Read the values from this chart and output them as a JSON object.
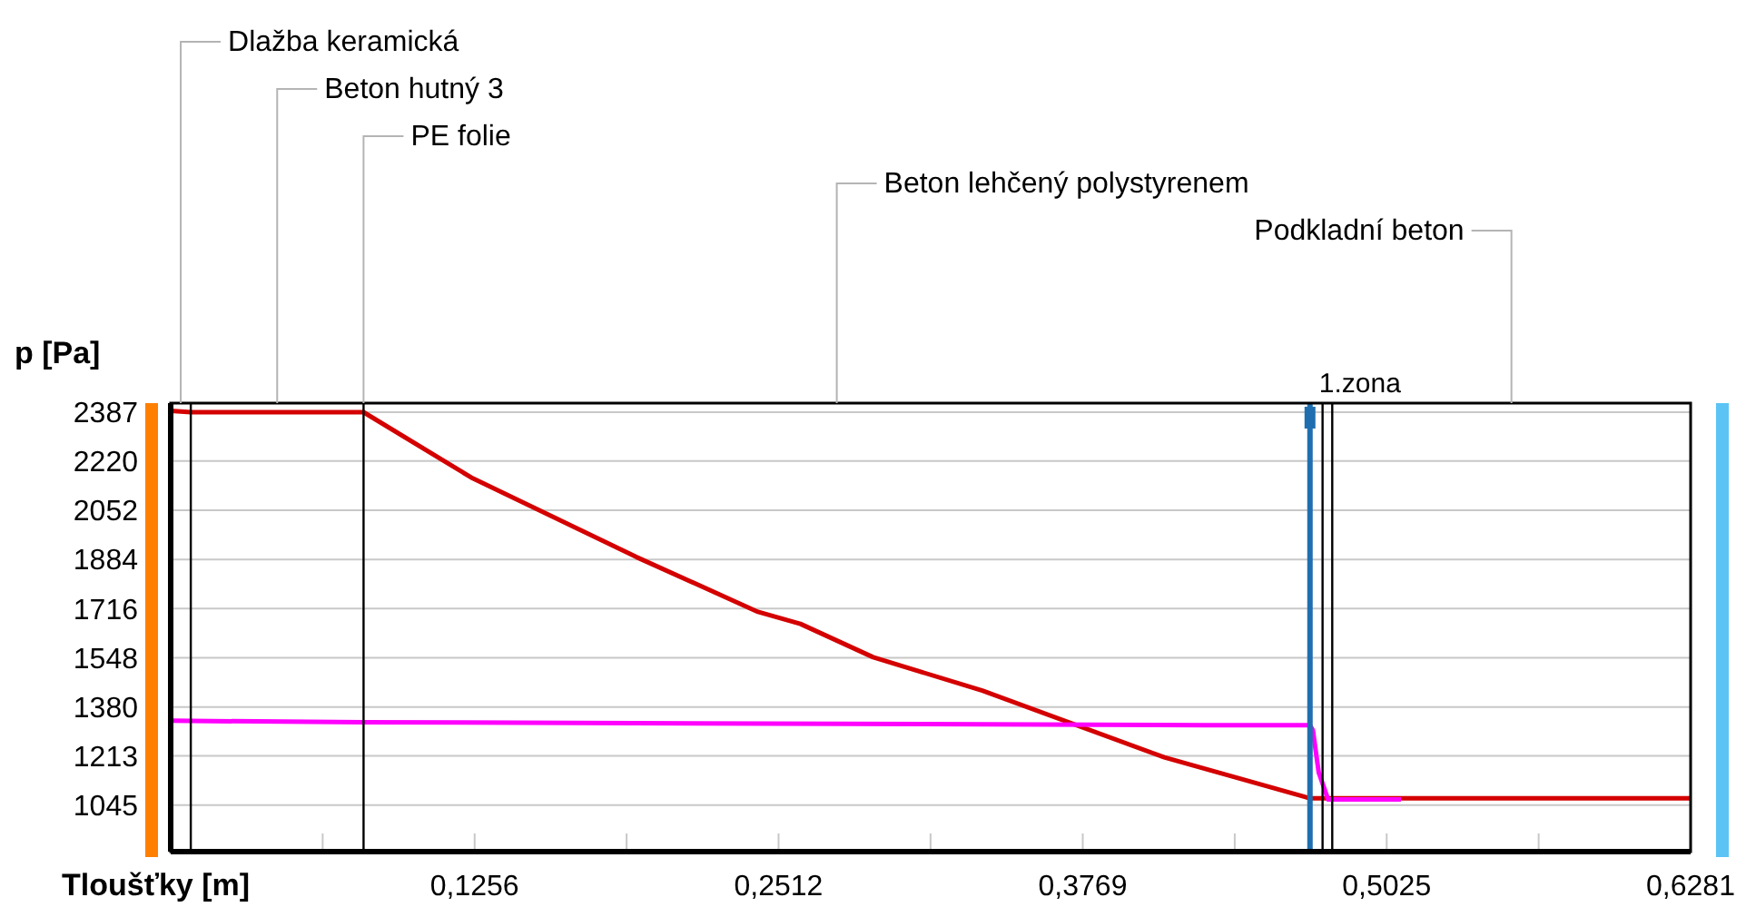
{
  "chart_data": {
    "type": "line",
    "xlabel": "Tloušťky [m]",
    "ylabel": "p [Pa]",
    "xlim": [
      0,
      0.6281
    ],
    "ylim": [
      886,
      2418
    ],
    "xticks": [
      {
        "value": 0.0628,
        "label": null
      },
      {
        "value": 0.1256,
        "label": "0,1256"
      },
      {
        "value": 0.1884,
        "label": null
      },
      {
        "value": 0.2512,
        "label": "0,2512"
      },
      {
        "value": 0.314,
        "label": null
      },
      {
        "value": 0.3769,
        "label": "0,3769"
      },
      {
        "value": 0.4397,
        "label": null
      },
      {
        "value": 0.5025,
        "label": "0,5025"
      },
      {
        "value": 0.5653,
        "label": null
      },
      {
        "value": 0.6281,
        "label": "0,6281"
      }
    ],
    "yticks": [
      1045,
      1213,
      1380,
      1548,
      1716,
      1884,
      2052,
      2220,
      2387
    ],
    "grid": "y",
    "marker": "none",
    "line_style": "solid",
    "series": [
      {
        "color": "#d40000",
        "x": [
          0,
          0.0083,
          0.0797,
          0.1248,
          0.1925,
          0.2427,
          0.2602,
          0.2903,
          0.3354,
          0.4106,
          0.4683,
          0.4708,
          0.6281
        ],
        "values": [
          2392,
          2387,
          2387,
          2161,
          1892,
          1705,
          1664,
          1550,
          1436,
          1208,
          1074,
          1068,
          1068
        ]
      },
      {
        "color": "#ff00ff",
        "x": [
          0,
          0.0797,
          0.4277,
          0.4708,
          0.472,
          0.4744,
          0.4783,
          0.5084
        ],
        "values": [
          1333,
          1328,
          1318,
          1318,
          1301,
          1157,
          1064,
          1064
        ]
      }
    ],
    "ref_lines": [
      {
        "axis": "x",
        "value": 0.0083,
        "color": "#000000"
      },
      {
        "axis": "x",
        "value": 0.0797,
        "color": "#000000"
      },
      {
        "axis": "x",
        "value": 0.4708,
        "color": "#1f6fb0",
        "label": "1.zona"
      },
      {
        "axis": "x",
        "value": 0.476,
        "color": "#000000"
      },
      {
        "axis": "x",
        "value": 0.48,
        "color": "#000000"
      }
    ],
    "annotations": [
      "Dlažba keramická",
      "Beton hutný 3",
      "PE folie",
      "Beton lehčený polystyrenem",
      "Podkladní beton"
    ]
  }
}
